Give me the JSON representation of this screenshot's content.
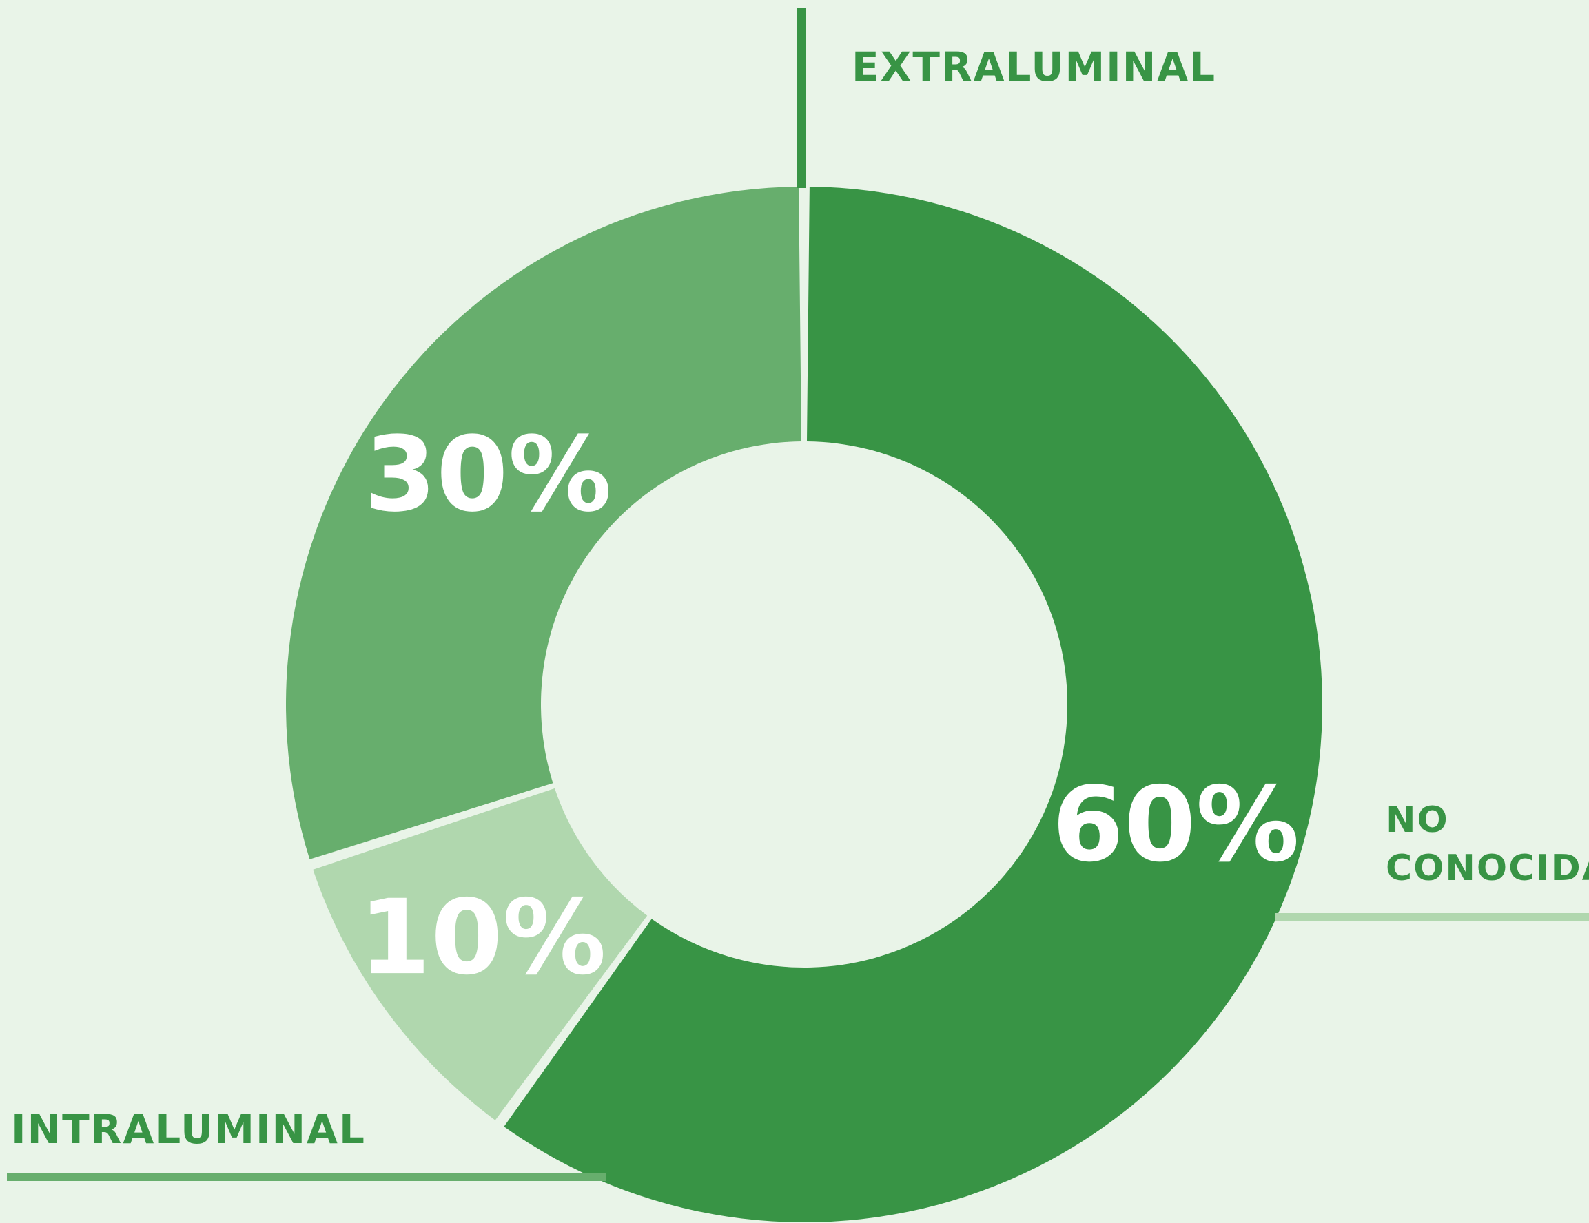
{
  "chart_data": {
    "type": "pie",
    "donut": true,
    "title": "",
    "categories": [
      "EXTRALUMINAL",
      "NO CONOCIDA",
      "INTRALUMINAL"
    ],
    "values": [
      60,
      10,
      30
    ],
    "value_labels": [
      "60%",
      "10%",
      "30%"
    ],
    "colors": [
      "#389445",
      "#b0d7ae",
      "#67ae6d"
    ],
    "legend": "callout-labels"
  },
  "labels": {
    "extraluminal": "EXTRALUMINAL",
    "no_conocida_line1": "NO",
    "no_conocida_line2": "CONOCIDA",
    "intraluminal": "INTRALUMINAL"
  }
}
